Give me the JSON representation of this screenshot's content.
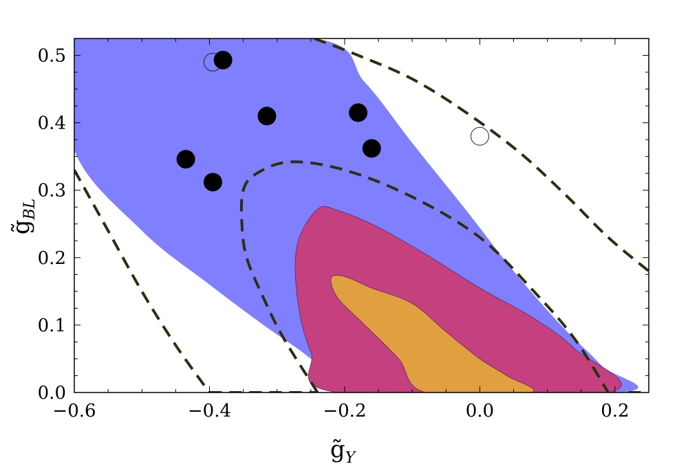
{
  "chart_data": {
    "type": "contour",
    "xlabel": "g̃",
    "xlabel_sub": "Y",
    "ylabel": "g̃",
    "ylabel_sub": "BL",
    "xlim": [
      -0.6,
      0.25
    ],
    "ylim": [
      0.0,
      0.525
    ],
    "xticks": [
      {
        "value": -0.6,
        "label": "−0.6"
      },
      {
        "value": -0.4,
        "label": "−0.4"
      },
      {
        "value": -0.2,
        "label": "−0.2"
      },
      {
        "value": 0.0,
        "label": "0.0"
      },
      {
        "value": 0.2,
        "label": "0.2"
      }
    ],
    "yticks": [
      {
        "value": 0.0,
        "label": "0.0"
      },
      {
        "value": 0.1,
        "label": "0.1"
      },
      {
        "value": 0.2,
        "label": "0.2"
      },
      {
        "value": 0.3,
        "label": "0.3"
      },
      {
        "value": 0.4,
        "label": "0.4"
      },
      {
        "value": 0.5,
        "label": "0.5"
      }
    ],
    "regions": [
      {
        "color": "#8080ff",
        "points": [
          [
            -0.6,
            0.525
          ],
          [
            -0.245,
            0.525
          ],
          [
            -0.17,
            0.46
          ],
          [
            -0.1,
            0.37
          ],
          [
            -0.02,
            0.27
          ],
          [
            0.05,
            0.18
          ],
          [
            0.12,
            0.1
          ],
          [
            0.18,
            0.04
          ],
          [
            0.21,
            0.0
          ],
          [
            -0.2,
            0.0
          ],
          [
            -0.25,
            0.05
          ],
          [
            -0.32,
            0.1
          ],
          [
            -0.4,
            0.16
          ],
          [
            -0.5,
            0.24
          ],
          [
            -0.6,
            0.36
          ]
        ]
      },
      {
        "color": "#c4407f",
        "points": [
          [
            -0.24,
            0.272
          ],
          [
            -0.21,
            0.27
          ],
          [
            -0.15,
            0.245
          ],
          [
            -0.08,
            0.205
          ],
          [
            0.0,
            0.155
          ],
          [
            0.08,
            0.11
          ],
          [
            0.14,
            0.065
          ],
          [
            0.19,
            0.0
          ],
          [
            -0.21,
            0.0
          ],
          [
            -0.25,
            0.06
          ],
          [
            -0.27,
            0.14
          ],
          [
            -0.27,
            0.22
          ]
        ]
      },
      {
        "color": "#e0a040",
        "points": [
          [
            -0.22,
            0.17
          ],
          [
            -0.2,
            0.172
          ],
          [
            -0.16,
            0.155
          ],
          [
            -0.1,
            0.132
          ],
          [
            -0.05,
            0.09
          ],
          [
            0.0,
            0.05
          ],
          [
            0.04,
            0.025
          ],
          [
            0.075,
            0.0
          ],
          [
            -0.08,
            0.0
          ],
          [
            -0.12,
            0.05
          ],
          [
            -0.17,
            0.1
          ],
          [
            -0.21,
            0.14
          ]
        ]
      }
    ],
    "dashed_curves": [
      [
        [
          -0.6,
          0.33
        ],
        [
          -0.55,
          0.24
        ],
        [
          -0.5,
          0.15
        ],
        [
          -0.45,
          0.07
        ],
        [
          -0.4,
          0.0
        ]
      ],
      [
        [
          -0.4,
          0.0
        ],
        [
          -0.24,
          0.0
        ]
      ],
      [
        [
          -0.24,
          0.0
        ],
        [
          -0.29,
          0.08
        ],
        [
          -0.32,
          0.14
        ],
        [
          -0.345,
          0.2
        ],
        [
          -0.352,
          0.25
        ],
        [
          -0.35,
          0.3
        ],
        [
          -0.33,
          0.325
        ],
        [
          -0.28,
          0.342
        ],
        [
          -0.2,
          0.33
        ],
        [
          -0.1,
          0.29
        ],
        [
          0.0,
          0.23
        ],
        [
          0.08,
          0.15
        ],
        [
          0.14,
          0.08
        ],
        [
          0.19,
          0.0
        ]
      ],
      [
        [
          -0.245,
          0.525
        ],
        [
          -0.18,
          0.5
        ],
        [
          -0.1,
          0.465
        ],
        [
          -0.02,
          0.415
        ],
        [
          0.06,
          0.355
        ],
        [
          0.13,
          0.29
        ],
        [
          0.19,
          0.23
        ],
        [
          0.25,
          0.18
        ]
      ],
      [
        [
          0.22,
          0.0
        ],
        [
          0.25,
          0.0
        ]
      ]
    ],
    "filled_points": [
      [
        -0.38,
        0.493
      ],
      [
        -0.315,
        0.41
      ],
      [
        -0.18,
        0.415
      ],
      [
        -0.16,
        0.362
      ],
      [
        -0.435,
        0.346
      ],
      [
        -0.395,
        0.312
      ]
    ],
    "open_points": [
      [
        -0.395,
        0.49
      ],
      [
        0.0,
        0.38
      ]
    ]
  }
}
